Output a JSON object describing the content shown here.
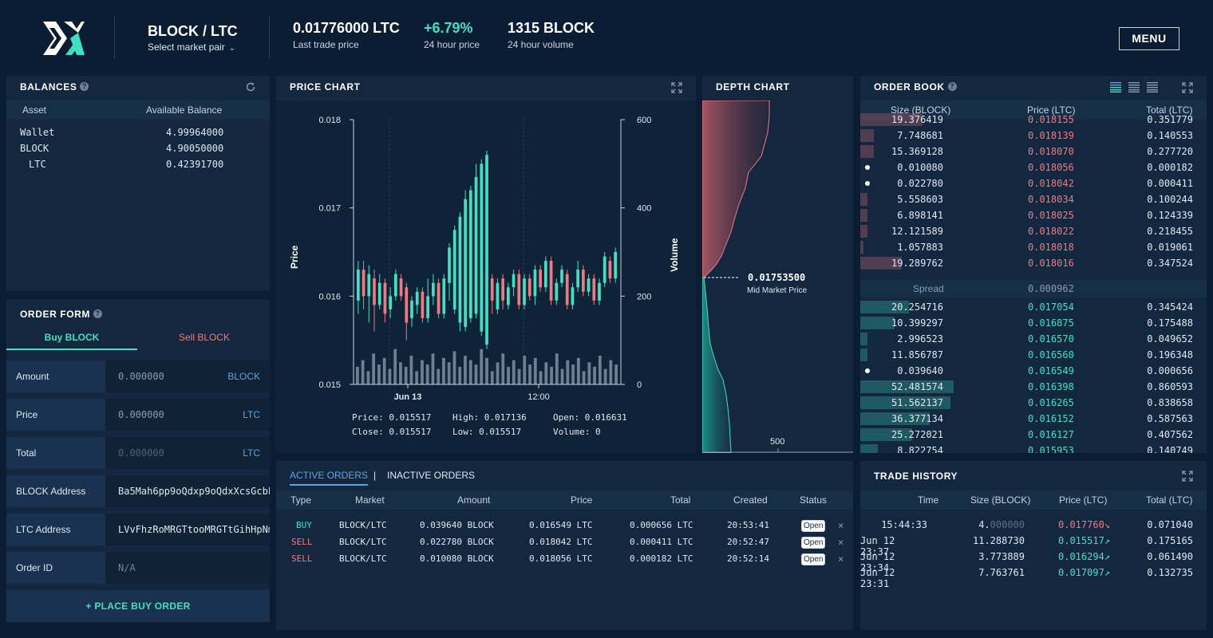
{
  "header": {
    "pair": "BLOCK / LTC",
    "select_label": "Select market pair",
    "last_price": "0.01776000 LTC",
    "last_price_label": "Last trade price",
    "change": "+6.79%",
    "change_label": "24 hour price",
    "volume": "1315 BLOCK",
    "volume_label": "24 hour volume",
    "menu": "MENU"
  },
  "balances": {
    "title": "BALANCES",
    "col_asset": "Asset",
    "col_balance": "Available Balance",
    "rows": [
      {
        "asset": "Wallet",
        "value": "4.99964000"
      },
      {
        "asset": "BLOCK",
        "value": "4.90050000"
      },
      {
        "asset": "LTC",
        "value": "0.42391700"
      }
    ]
  },
  "order_form": {
    "title": "ORDER FORM",
    "tab_buy": "Buy BLOCK",
    "tab_sell": "Sell BLOCK",
    "fields": [
      {
        "label": "Amount",
        "value": "0.000000",
        "unit": "BLOCK"
      },
      {
        "label": "Price",
        "value": "0.000000",
        "unit": "LTC"
      },
      {
        "label": "Total",
        "value": "0.000000",
        "unit": "LTC"
      },
      {
        "label": "BLOCK Address",
        "value": "Ba5Mah6pp9oQdxp9oQdxXcsGcbL",
        "unit": ""
      },
      {
        "label": "LTC Address",
        "value": "LVvFhzRoMRGTtooMRGTtGihHpNm",
        "unit": ""
      },
      {
        "label": "Order ID",
        "value": "N/A",
        "unit": ""
      }
    ],
    "place_button": "+ PLACE BUY ORDER"
  },
  "price_chart": {
    "title": "PRICE CHART",
    "y_left_label": "Price",
    "y_right_label": "Volume",
    "y_left_ticks": [
      "0.018",
      "0.017",
      "0.016",
      "0.015"
    ],
    "y_right_ticks": [
      "600",
      "400",
      "200",
      "0"
    ],
    "x_ticks": [
      "Jun 13",
      "12:00"
    ],
    "info": {
      "price": "Price: 0.015517",
      "high": "High: 0.017136",
      "open": "Open: 0.016631",
      "close": "Close: 0.015517",
      "low": "Low: 0.015517",
      "volume": "Volume: 0"
    }
  },
  "chart_data": {
    "type": "bar",
    "title": "PRICE CHART",
    "ylabel": "Price",
    "y2label": "Volume",
    "ylim": [
      0.015,
      0.018
    ],
    "y2lim": [
      0,
      600
    ],
    "x_ticks": [
      "Jun 13",
      "12:00"
    ],
    "candles": [
      {
        "o": 0.01595,
        "c": 0.0163,
        "h": 0.0164,
        "l": 0.0158
      },
      {
        "o": 0.0163,
        "c": 0.016,
        "h": 0.0164,
        "l": 0.01585
      },
      {
        "o": 0.016,
        "c": 0.01625,
        "h": 0.01635,
        "l": 0.0157
      },
      {
        "o": 0.0162,
        "c": 0.0159,
        "h": 0.0163,
        "l": 0.0156
      },
      {
        "o": 0.0159,
        "c": 0.01615,
        "h": 0.01625,
        "l": 0.01585
      },
      {
        "o": 0.01615,
        "c": 0.0158,
        "h": 0.0162,
        "l": 0.0157
      },
      {
        "o": 0.01585,
        "c": 0.016,
        "h": 0.0161,
        "l": 0.01575
      },
      {
        "o": 0.016,
        "c": 0.01625,
        "h": 0.0163,
        "l": 0.01595
      },
      {
        "o": 0.0162,
        "c": 0.016,
        "h": 0.01625,
        "l": 0.01595
      },
      {
        "o": 0.0161,
        "c": 0.0157,
        "h": 0.01615,
        "l": 0.0155
      },
      {
        "o": 0.01575,
        "c": 0.01595,
        "h": 0.016,
        "l": 0.01565
      },
      {
        "o": 0.0159,
        "c": 0.01605,
        "h": 0.0161,
        "l": 0.0158
      },
      {
        "o": 0.01605,
        "c": 0.01575,
        "h": 0.0161,
        "l": 0.0157
      },
      {
        "o": 0.01575,
        "c": 0.016,
        "h": 0.0162,
        "l": 0.0157
      },
      {
        "o": 0.016,
        "c": 0.01615,
        "h": 0.01625,
        "l": 0.0159
      },
      {
        "o": 0.01615,
        "c": 0.0158,
        "h": 0.0162,
        "l": 0.01575
      },
      {
        "o": 0.0158,
        "c": 0.0162,
        "h": 0.01625,
        "l": 0.01575
      },
      {
        "o": 0.01615,
        "c": 0.01655,
        "h": 0.0166,
        "l": 0.01595
      },
      {
        "o": 0.01585,
        "c": 0.01675,
        "h": 0.0168,
        "l": 0.0158
      },
      {
        "o": 0.0157,
        "c": 0.0169,
        "h": 0.01695,
        "l": 0.0156
      },
      {
        "o": 0.01565,
        "c": 0.0171,
        "h": 0.0172,
        "l": 0.0156
      },
      {
        "o": 0.01575,
        "c": 0.0172,
        "h": 0.01725,
        "l": 0.0157
      },
      {
        "o": 0.0158,
        "c": 0.01735,
        "h": 0.0175,
        "l": 0.01575
      },
      {
        "o": 0.0156,
        "c": 0.0175,
        "h": 0.01755,
        "l": 0.01555
      },
      {
        "o": 0.01545,
        "c": 0.0176,
        "h": 0.01765,
        "l": 0.0154
      },
      {
        "o": 0.0162,
        "c": 0.01595,
        "h": 0.01625,
        "l": 0.0158
      },
      {
        "o": 0.01585,
        "c": 0.01615,
        "h": 0.0162,
        "l": 0.0158
      },
      {
        "o": 0.0162,
        "c": 0.01595,
        "h": 0.01625,
        "l": 0.01585
      },
      {
        "o": 0.0159,
        "c": 0.0161,
        "h": 0.01615,
        "l": 0.01585
      },
      {
        "o": 0.0161,
        "c": 0.01625,
        "h": 0.0163,
        "l": 0.016
      },
      {
        "o": 0.01625,
        "c": 0.0159,
        "h": 0.0163,
        "l": 0.01585
      },
      {
        "o": 0.0159,
        "c": 0.0162,
        "h": 0.01625,
        "l": 0.01585
      },
      {
        "o": 0.0162,
        "c": 0.016,
        "h": 0.01625,
        "l": 0.01595
      },
      {
        "o": 0.016,
        "c": 0.0163,
        "h": 0.01635,
        "l": 0.0159
      },
      {
        "o": 0.0163,
        "c": 0.0161,
        "h": 0.01635,
        "l": 0.01605
      },
      {
        "o": 0.0161,
        "c": 0.0164,
        "h": 0.01645,
        "l": 0.01605
      },
      {
        "o": 0.0164,
        "c": 0.01595,
        "h": 0.01645,
        "l": 0.0159
      },
      {
        "o": 0.01595,
        "c": 0.01615,
        "h": 0.0162,
        "l": 0.0159
      },
      {
        "o": 0.01615,
        "c": 0.0163,
        "h": 0.01635,
        "l": 0.0161
      },
      {
        "o": 0.01625,
        "c": 0.0159,
        "h": 0.0163,
        "l": 0.01585
      },
      {
        "o": 0.0159,
        "c": 0.0161,
        "h": 0.01615,
        "l": 0.01585
      },
      {
        "o": 0.0161,
        "c": 0.0163,
        "h": 0.0164,
        "l": 0.01605
      },
      {
        "o": 0.0163,
        "c": 0.01605,
        "h": 0.01635,
        "l": 0.016
      },
      {
        "o": 0.01605,
        "c": 0.0162,
        "h": 0.01625,
        "l": 0.016
      },
      {
        "o": 0.0162,
        "c": 0.01595,
        "h": 0.01625,
        "l": 0.0159
      },
      {
        "o": 0.01595,
        "c": 0.01615,
        "h": 0.0162,
        "l": 0.0159
      },
      {
        "o": 0.01615,
        "c": 0.01645,
        "h": 0.0165,
        "l": 0.0161
      },
      {
        "o": 0.0164,
        "c": 0.0162,
        "h": 0.01645,
        "l": 0.01615
      },
      {
        "o": 0.0162,
        "c": 0.0165,
        "h": 0.01655,
        "l": 0.01615
      }
    ],
    "volume": [
      40,
      55,
      30,
      70,
      45,
      60,
      35,
      80,
      50,
      40,
      65,
      30,
      55,
      45,
      70,
      35,
      60,
      50,
      75,
      40,
      65,
      55,
      45,
      80,
      60,
      30,
      50,
      70,
      40,
      55,
      35,
      65,
      45,
      60,
      30,
      50,
      40,
      70,
      35,
      55,
      45,
      60,
      30,
      50,
      40,
      65,
      35,
      55,
      45
    ]
  },
  "depth_chart": {
    "title": "DEPTH CHART",
    "mid_price": "0.01753500",
    "mid_label": "Mid Market Price",
    "x_tick": "500"
  },
  "order_book": {
    "title": "ORDER BOOK",
    "col_size": "Size (BLOCK)",
    "col_price": "Price (LTC)",
    "col_total": "Total (LTC)",
    "asks": [
      {
        "size": "19.376419",
        "price": "0.018155",
        "total": "0.351779",
        "bar": 0.18,
        "mine": false
      },
      {
        "size": "7.748681",
        "price": "0.018139",
        "total": "0.140553",
        "bar": 0.04,
        "mine": false
      },
      {
        "size": "15.369128",
        "price": "0.018070",
        "total": "0.277720",
        "bar": 0.04,
        "mine": false
      },
      {
        "size": "0.010080",
        "price": "0.018056",
        "total": "0.000182",
        "bar": 0.0,
        "mine": true
      },
      {
        "size": "0.022780",
        "price": "0.018042",
        "total": "0.000411",
        "bar": 0.0,
        "mine": true
      },
      {
        "size": "5.558603",
        "price": "0.018034",
        "total": "0.100244",
        "bar": 0.02,
        "mine": false
      },
      {
        "size": "6.898141",
        "price": "0.018025",
        "total": "0.124339",
        "bar": 0.02,
        "mine": false
      },
      {
        "size": "12.121589",
        "price": "0.018022",
        "total": "0.218455",
        "bar": 0.02,
        "mine": false
      },
      {
        "size": "1.057883",
        "price": "0.018018",
        "total": "0.019061",
        "bar": 0.01,
        "mine": false
      },
      {
        "size": "19.289762",
        "price": "0.018016",
        "total": "0.347524",
        "bar": 0.12,
        "mine": false
      }
    ],
    "spread_label": "Spread",
    "spread_value": "0.000962",
    "bids": [
      {
        "size": "20.254716",
        "price": "0.017054",
        "total": "0.345424",
        "bar": 0.14,
        "mine": false
      },
      {
        "size": "10.399297",
        "price": "0.016875",
        "total": "0.175488",
        "bar": 0.1,
        "mine": false
      },
      {
        "size": "2.996523",
        "price": "0.016570",
        "total": "0.049652",
        "bar": 0.02,
        "mine": false
      },
      {
        "size": "11.856787",
        "price": "0.016560",
        "total": "0.196348",
        "bar": 0.02,
        "mine": false
      },
      {
        "size": "0.039640",
        "price": "0.016549",
        "total": "0.000656",
        "bar": 0.0,
        "mine": true
      },
      {
        "size": "52.481574",
        "price": "0.016398",
        "total": "0.860593",
        "bar": 0.27,
        "mine": false
      },
      {
        "size": "51.562137",
        "price": "0.016265",
        "total": "0.838658",
        "bar": 0.26,
        "mine": false
      },
      {
        "size": "36.377134",
        "price": "0.016152",
        "total": "0.587563",
        "bar": 0.2,
        "mine": false
      },
      {
        "size": "25.272021",
        "price": "0.016127",
        "total": "0.407562",
        "bar": 0.15,
        "mine": false
      },
      {
        "size": "8.822754",
        "price": "0.015953",
        "total": "0.140749",
        "bar": 0.05,
        "mine": false
      }
    ]
  },
  "active_orders": {
    "tab_active": "ACTIVE ORDERS",
    "divider": "|",
    "tab_inactive": "INACTIVE ORDERS",
    "cols": [
      "Type",
      "Market",
      "Amount",
      "Price",
      "Total",
      "Created",
      "Status"
    ],
    "rows": [
      {
        "type": "BUY",
        "market": "BLOCK/LTC",
        "amount": "0.039640 BLOCK",
        "price": "0.016549 LTC",
        "total": "0.000656 LTC",
        "created": "20:53:41",
        "status": "Open"
      },
      {
        "type": "SELL",
        "market": "BLOCK/LTC",
        "amount": "0.022780 BLOCK",
        "price": "0.018042 LTC",
        "total": "0.000411 LTC",
        "created": "20:52:47",
        "status": "Open"
      },
      {
        "type": "SELL",
        "market": "BLOCK/LTC",
        "amount": "0.010080 BLOCK",
        "price": "0.018056 LTC",
        "total": "0.000182 LTC",
        "created": "20:52:14",
        "status": "Open"
      }
    ],
    "close_glyph": "×"
  },
  "trade_history": {
    "title": "TRADE HISTORY",
    "cols": [
      "Time",
      "Size (BLOCK)",
      "Price (LTC)",
      "Total (LTC)"
    ],
    "rows": [
      {
        "time": "15:44:33",
        "size_main": "4.",
        "size_dim": "000000",
        "price": "0.017760",
        "arrow": "↘",
        "dir": "down",
        "total": "0.071040"
      },
      {
        "time": "Jun 12 23:37",
        "size_main": "11.288730",
        "size_dim": "",
        "price": "0.015517",
        "arrow": "↗",
        "dir": "up",
        "total": "0.175165"
      },
      {
        "time": "Jun 12 23:34",
        "size_main": "3.773889",
        "size_dim": "",
        "price": "0.016294",
        "arrow": "↗",
        "dir": "up",
        "total": "0.061490"
      },
      {
        "time": "Jun 12 23:31",
        "size_main": "7.763761",
        "size_dim": "",
        "price": "0.017097",
        "arrow": "↗",
        "dir": "up",
        "total": "0.132735"
      }
    ]
  },
  "colors": {
    "bg": "#0b1d33",
    "panel": "#13283f",
    "green": "#3fe0c3",
    "red": "#f2787f",
    "blue": "#5fa3e0"
  },
  "icons": {
    "logo": "blocknet-dx-logo",
    "refresh": "refresh-icon",
    "expand": "expand-icon",
    "help": "question-icon",
    "chevron": "chevron-down-icon"
  }
}
